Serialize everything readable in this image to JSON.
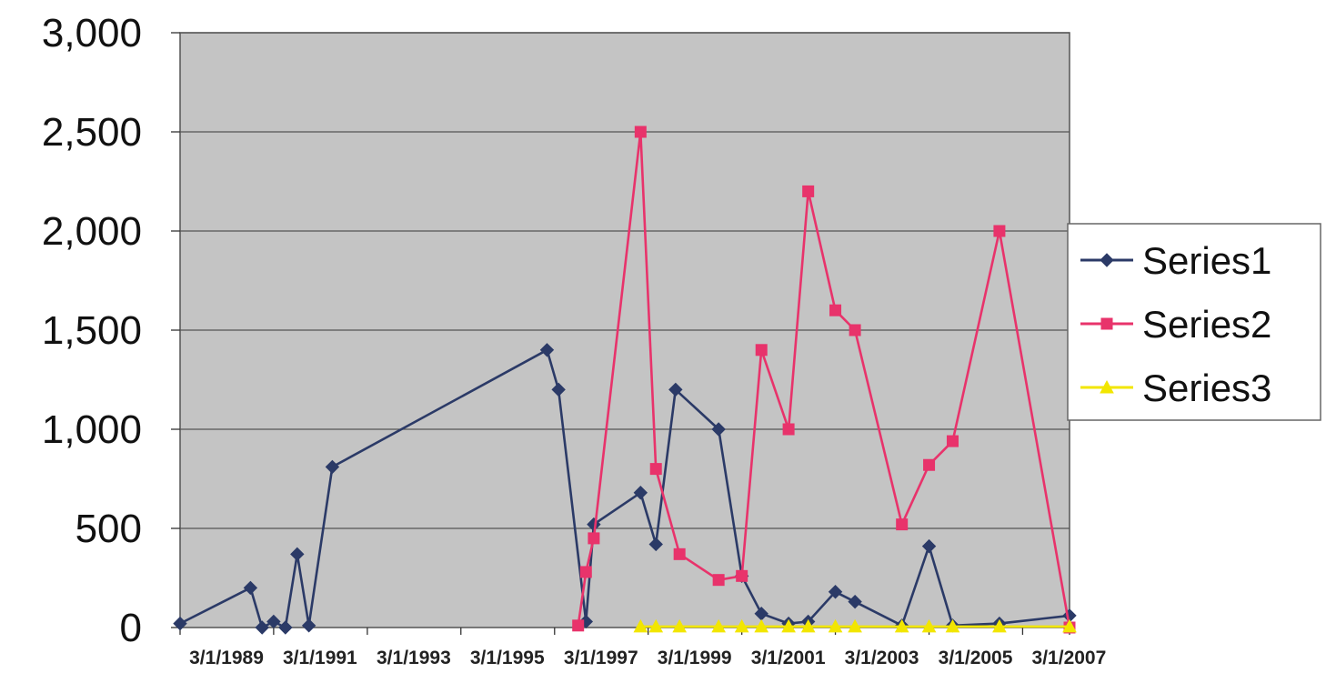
{
  "chart_data": {
    "type": "line",
    "title": "",
    "xlabel": "",
    "ylabel": "",
    "ylim": [
      0,
      3000
    ],
    "y_ticks": [
      "0",
      "500",
      "1,000",
      "1,500",
      "2,000",
      "2,500",
      "3,000"
    ],
    "y_tick_values": [
      0,
      500,
      1000,
      1500,
      2000,
      2500,
      3000
    ],
    "x_range": [
      "1989-03-01",
      "2008-03-01"
    ],
    "x_ticks": [
      "3/1/1989",
      "3/1/1991",
      "3/1/1993",
      "3/1/1995",
      "3/1/1997",
      "3/1/1999",
      "3/1/2001",
      "3/1/2003",
      "3/1/2005",
      "3/1/2007"
    ],
    "grid": true,
    "legend_position": "right",
    "plot_background": "#c4c4c4",
    "series": [
      {
        "name": "Series1",
        "color": "#2b3a67",
        "marker": "diamond",
        "points": [
          [
            "1989-03-01",
            20
          ],
          [
            "1990-09-01",
            200
          ],
          [
            "1990-12-01",
            0
          ],
          [
            "1991-03-01",
            30
          ],
          [
            "1991-06-01",
            0
          ],
          [
            "1991-09-01",
            370
          ],
          [
            "1991-12-01",
            10
          ],
          [
            "1992-06-01",
            810
          ],
          [
            "1997-01-01",
            1400
          ],
          [
            "1997-04-01",
            1200
          ],
          [
            "1997-11-01",
            30
          ],
          [
            "1998-01-01",
            520
          ],
          [
            "1999-01-01",
            680
          ],
          [
            "1999-05-01",
            420
          ],
          [
            "1999-10-01",
            1200
          ],
          [
            "2000-09-01",
            1000
          ],
          [
            "2001-03-01",
            260
          ],
          [
            "2001-08-01",
            70
          ],
          [
            "2002-03-01",
            20
          ],
          [
            "2002-08-01",
            30
          ],
          [
            "2003-03-01",
            180
          ],
          [
            "2003-08-01",
            130
          ],
          [
            "2004-08-01",
            10
          ],
          [
            "2005-03-01",
            410
          ],
          [
            "2005-09-01",
            10
          ],
          [
            "2006-09-01",
            20
          ],
          [
            "2008-03-01",
            60
          ]
        ]
      },
      {
        "name": "Series2",
        "color": "#e8336b",
        "marker": "square",
        "points": [
          [
            "1997-09-01",
            10
          ],
          [
            "1997-11-01",
            280
          ],
          [
            "1998-01-01",
            450
          ],
          [
            "1999-01-01",
            2500
          ],
          [
            "1999-05-01",
            800
          ],
          [
            "1999-11-01",
            370
          ],
          [
            "2000-09-01",
            240
          ],
          [
            "2001-03-01",
            260
          ],
          [
            "2001-08-01",
            1400
          ],
          [
            "2002-03-01",
            1000
          ],
          [
            "2002-08-01",
            2200
          ],
          [
            "2003-03-01",
            1600
          ],
          [
            "2003-08-01",
            1500
          ],
          [
            "2004-08-01",
            520
          ],
          [
            "2005-03-01",
            820
          ],
          [
            "2005-09-01",
            940
          ],
          [
            "2006-09-01",
            2000
          ],
          [
            "2008-03-01",
            0
          ]
        ]
      },
      {
        "name": "Series3",
        "color": "#f2e600",
        "marker": "triangle",
        "points": [
          [
            "1999-01-01",
            5
          ],
          [
            "1999-05-01",
            5
          ],
          [
            "1999-11-01",
            5
          ],
          [
            "2000-09-01",
            5
          ],
          [
            "2001-03-01",
            5
          ],
          [
            "2001-08-01",
            5
          ],
          [
            "2002-03-01",
            5
          ],
          [
            "2002-08-01",
            5
          ],
          [
            "2003-03-01",
            5
          ],
          [
            "2003-08-01",
            5
          ],
          [
            "2004-08-01",
            5
          ],
          [
            "2005-03-01",
            5
          ],
          [
            "2005-09-01",
            5
          ],
          [
            "2006-09-01",
            5
          ],
          [
            "2008-03-01",
            5
          ]
        ]
      }
    ]
  }
}
